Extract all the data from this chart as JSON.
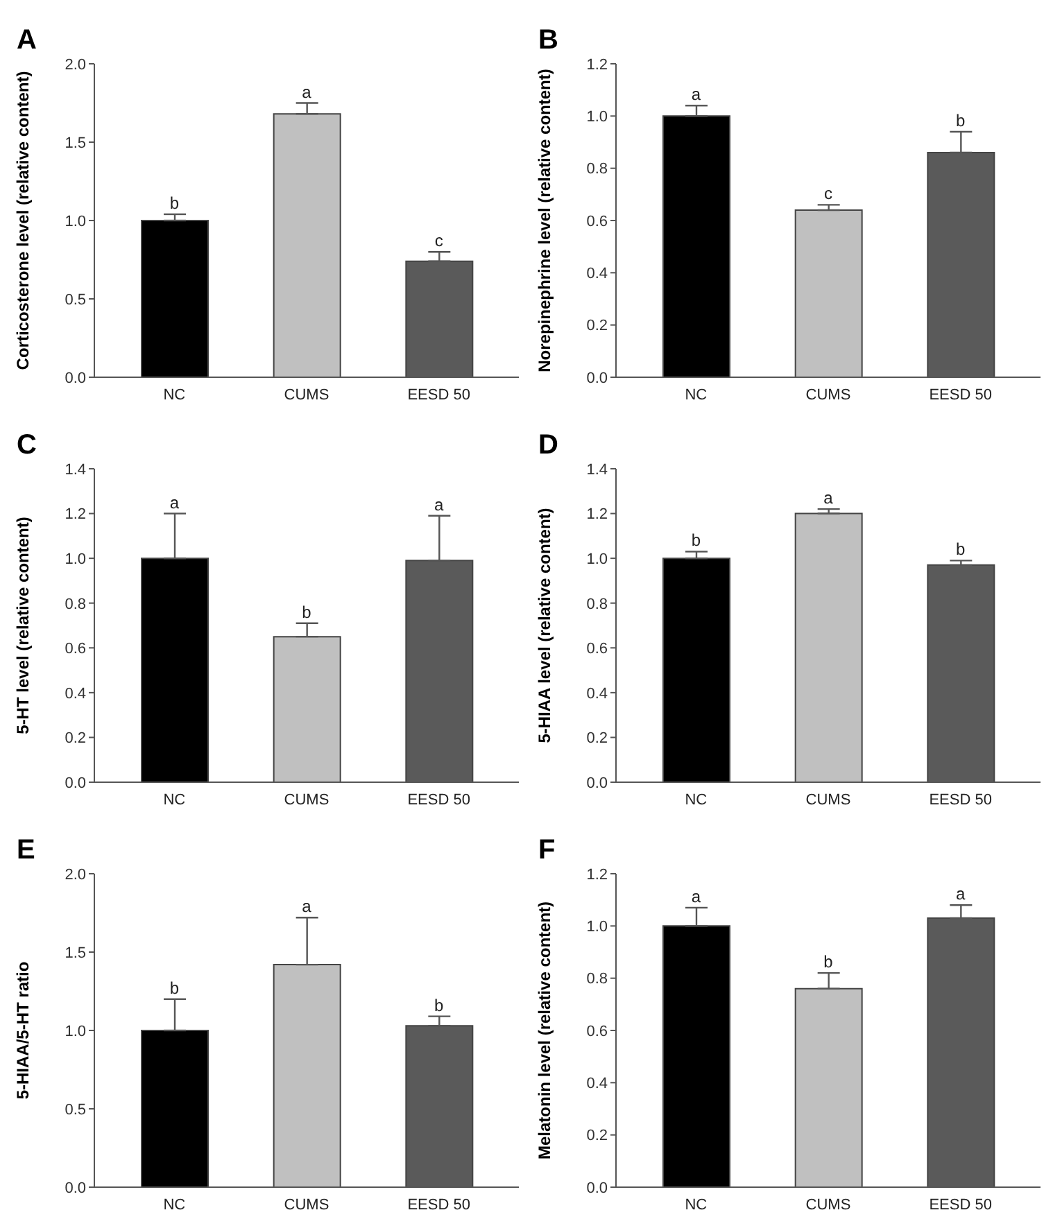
{
  "chart_data": [
    {
      "type": "bar",
      "title": "A",
      "ylabel": "Corticosterone level (relative content)",
      "categories": [
        "NC",
        "CUMS",
        "EESD 50"
      ],
      "values": [
        1.0,
        1.68,
        0.74
      ],
      "errors": [
        [
          1.0,
          1.04
        ],
        [
          1.68,
          1.75
        ],
        [
          0.74,
          0.8
        ]
      ],
      "colors": [
        "#000000",
        "#c0c0c0",
        "#5a5a5a"
      ],
      "ylim": [
        0,
        2
      ],
      "yticks": [
        {
          "value": 0,
          "label": "0.0"
        },
        {
          "value": 0.5,
          "label": "0.5"
        },
        {
          "value": 1,
          "label": "1.0"
        },
        {
          "value": 1.5,
          "label": "1.5"
        },
        {
          "value": 2,
          "label": "2.0"
        }
      ],
      "grid": false,
      "legend": false,
      "annotations": [
        {
          "text": "b",
          "x": "NC",
          "y": 1.04
        },
        {
          "text": "a",
          "x": "CUMS",
          "y": 1.75
        },
        {
          "text": "c",
          "x": "EESD 50",
          "y": 0.8
        }
      ]
    },
    {
      "type": "bar",
      "title": "B",
      "ylabel": "Norepinephrine level (relative content)",
      "categories": [
        "NC",
        "CUMS",
        "EESD 50"
      ],
      "values": [
        1.0,
        0.64,
        0.86
      ],
      "errors": [
        [
          1.0,
          1.04
        ],
        [
          0.64,
          0.66
        ],
        [
          0.86,
          0.94
        ]
      ],
      "colors": [
        "#000000",
        "#c0c0c0",
        "#5a5a5a"
      ],
      "ylim": [
        0,
        1.2
      ],
      "yticks": [
        {
          "value": 0,
          "label": "0.0"
        },
        0.2,
        0.4,
        0.6,
        0.8,
        {
          "value": 1,
          "label": "1.0"
        },
        1.2
      ],
      "grid": false,
      "legend": false,
      "annotations": [
        {
          "text": "a",
          "x": "NC",
          "y": 1.04
        },
        {
          "text": "c",
          "x": "CUMS",
          "y": 0.66
        },
        {
          "text": "b",
          "x": "EESD 50",
          "y": 0.94
        }
      ]
    },
    {
      "type": "bar",
      "title": "C",
      "ylabel": "5-HT level (relative content)",
      "categories": [
        "NC",
        "CUMS",
        "EESD 50"
      ],
      "values": [
        1.0,
        0.65,
        0.99
      ],
      "errors": [
        [
          1.0,
          1.2
        ],
        [
          0.65,
          0.71
        ],
        [
          0.99,
          1.19
        ]
      ],
      "colors": [
        "#000000",
        "#c0c0c0",
        "#5a5a5a"
      ],
      "ylim": [
        0,
        1.4
      ],
      "yticks": [
        {
          "value": 0,
          "label": "0.0"
        },
        0.2,
        0.4,
        0.6,
        0.8,
        {
          "value": 1,
          "label": "1.0"
        },
        1.2,
        1.4
      ],
      "grid": false,
      "legend": false,
      "annotations": [
        {
          "text": "a",
          "x": "NC",
          "y": 1.2
        },
        {
          "text": "b",
          "x": "CUMS",
          "y": 0.71
        },
        {
          "text": "a",
          "x": "EESD 50",
          "y": 1.19
        }
      ]
    },
    {
      "type": "bar",
      "title": "D",
      "ylabel": "5-HIAA level (relative content)",
      "categories": [
        "NC",
        "CUMS",
        "EESD 50"
      ],
      "values": [
        1.0,
        1.2,
        0.97
      ],
      "errors": [
        [
          1.0,
          1.03
        ],
        [
          1.2,
          1.22
        ],
        [
          0.97,
          0.99
        ]
      ],
      "colors": [
        "#000000",
        "#c0c0c0",
        "#5a5a5a"
      ],
      "ylim": [
        0,
        1.4
      ],
      "yticks": [
        {
          "value": 0,
          "label": "0.0"
        },
        0.2,
        0.4,
        0.6,
        0.8,
        {
          "value": 1,
          "label": "1.0"
        },
        1.2,
        1.4
      ],
      "grid": false,
      "legend": false,
      "annotations": [
        {
          "text": "b",
          "x": "NC",
          "y": 1.03
        },
        {
          "text": "a",
          "x": "CUMS",
          "y": 1.22
        },
        {
          "text": "b",
          "x": "EESD 50",
          "y": 0.99
        }
      ]
    },
    {
      "type": "bar",
      "title": "E",
      "ylabel": "5-HIAA/5-HT ratio",
      "categories": [
        "NC",
        "CUMS",
        "EESD 50"
      ],
      "values": [
        1.0,
        1.42,
        1.03
      ],
      "errors": [
        [
          1.0,
          1.2
        ],
        [
          1.42,
          1.72
        ],
        [
          1.03,
          1.09
        ]
      ],
      "colors": [
        "#000000",
        "#c0c0c0",
        "#5a5a5a"
      ],
      "ylim": [
        0,
        2
      ],
      "yticks": [
        {
          "value": 0,
          "label": "0.0"
        },
        0.5,
        {
          "value": 1,
          "label": "1.0"
        },
        1.5,
        {
          "value": 2,
          "label": "2.0"
        }
      ],
      "grid": false,
      "legend": false,
      "annotations": [
        {
          "text": "b",
          "x": "NC",
          "y": 1.2
        },
        {
          "text": "a",
          "x": "CUMS",
          "y": 1.72
        },
        {
          "text": "b",
          "x": "EESD 50",
          "y": 1.09
        }
      ]
    },
    {
      "type": "bar",
      "title": "F",
      "ylabel": "Melatonin level (relative content)",
      "categories": [
        "NC",
        "CUMS",
        "EESD 50"
      ],
      "values": [
        1.0,
        0.76,
        1.03
      ],
      "errors": [
        [
          1.0,
          1.07
        ],
        [
          0.76,
          0.82
        ],
        [
          1.03,
          1.08
        ]
      ],
      "colors": [
        "#000000",
        "#c0c0c0",
        "#5a5a5a"
      ],
      "ylim": [
        0,
        1.2
      ],
      "yticks": [
        {
          "value": 0,
          "label": "0.0"
        },
        0.2,
        0.4,
        0.6,
        0.8,
        {
          "value": 1,
          "label": "1.0"
        },
        1.2
      ],
      "grid": false,
      "legend": false,
      "annotations": [
        {
          "text": "a",
          "x": "NC",
          "y": 1.07
        },
        {
          "text": "b",
          "x": "CUMS",
          "y": 0.82
        },
        {
          "text": "a",
          "x": "EESD 50",
          "y": 1.08
        }
      ]
    }
  ]
}
